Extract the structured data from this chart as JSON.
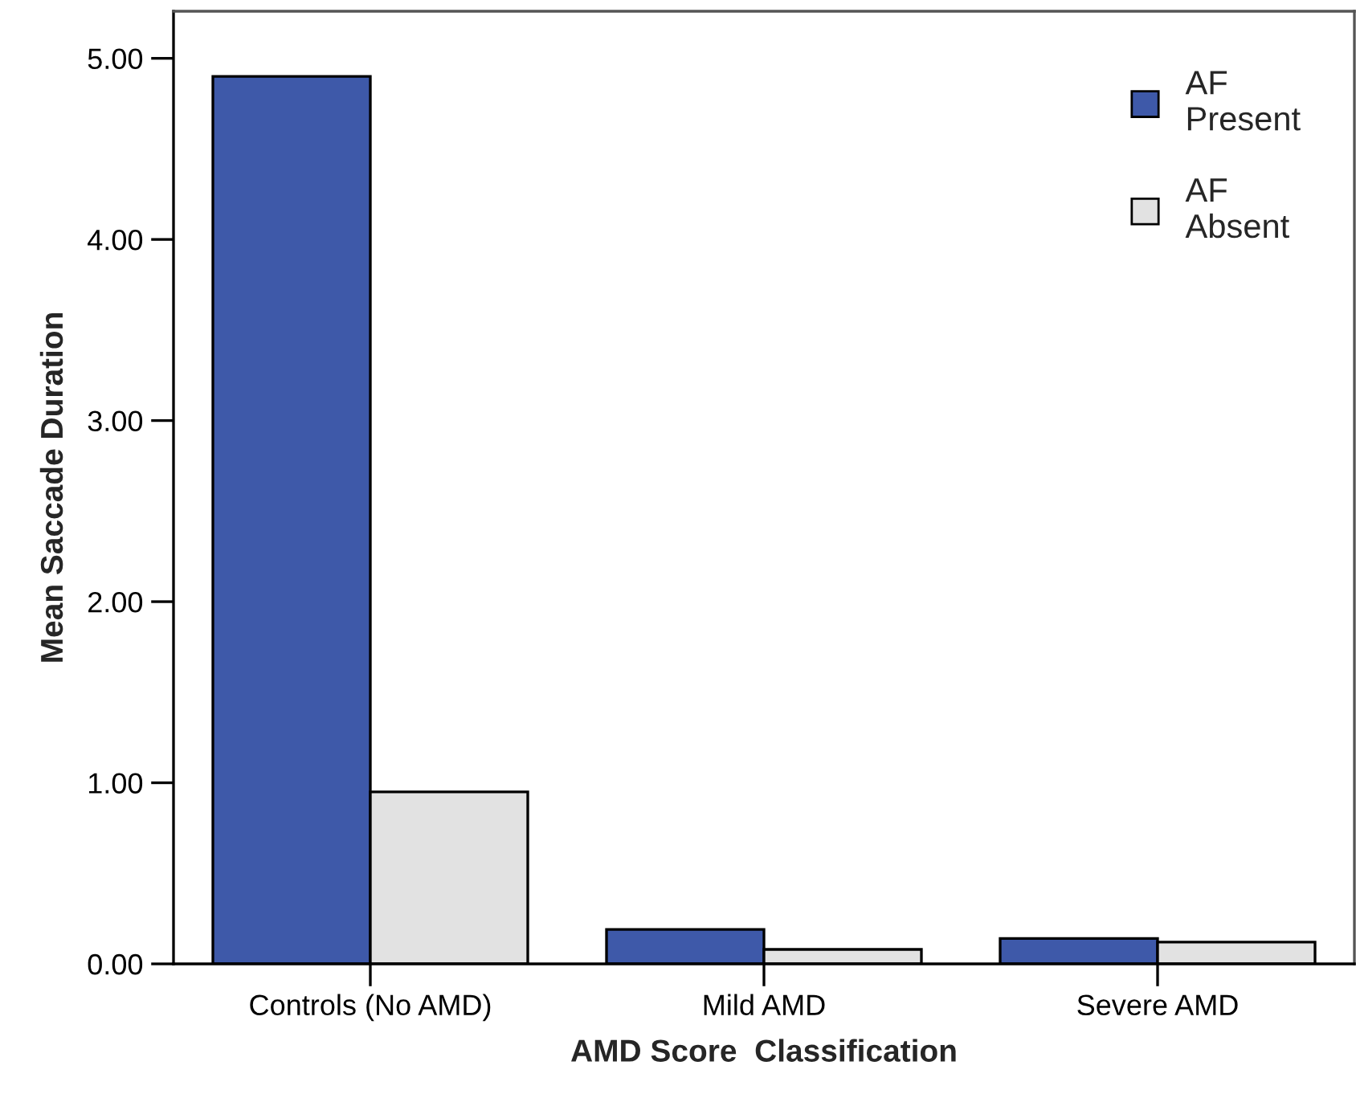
{
  "chart_data": {
    "type": "bar",
    "xlabel": "AMD Score  Classification",
    "ylabel": "Mean Saccade Duration",
    "categories": [
      "Controls (No AMD)",
      "Mild AMD",
      "Severe AMD"
    ],
    "series": [
      {
        "name": "AF\nPresent",
        "color": "#3e59a9",
        "values": [
          4.9,
          0.19,
          0.14
        ]
      },
      {
        "name": "AF\nAbsent",
        "color": "#e2e2e2",
        "values": [
          0.95,
          0.08,
          0.12
        ]
      }
    ],
    "ylim": [
      0,
      5.26
    ],
    "yticks": [
      {
        "value": 0,
        "label": "0.00"
      },
      {
        "value": 1,
        "label": "1.00"
      },
      {
        "value": 2,
        "label": "2.00"
      },
      {
        "value": 3,
        "label": "3.00"
      },
      {
        "value": 4,
        "label": "4.00"
      },
      {
        "value": 5,
        "label": "5.00"
      }
    ],
    "grid": false,
    "legend": "top right"
  }
}
